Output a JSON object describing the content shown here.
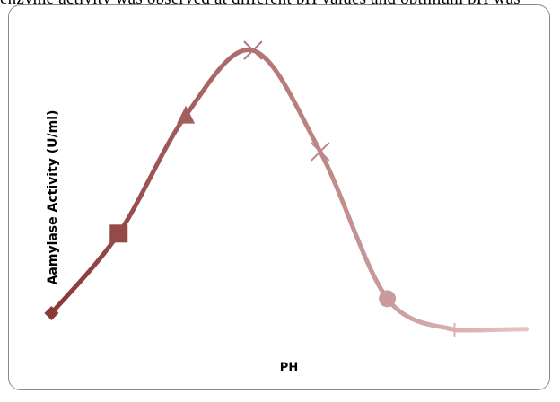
{
  "caption_text": "enzyme activity was observed at different pH values and optimum pH was",
  "chart_data": {
    "type": "line",
    "title": "",
    "xlabel": "PH",
    "ylabel": "Aamylase Activity (U/ml)",
    "x": [
      1,
      2,
      3,
      4,
      5,
      6,
      7
    ],
    "values": [
      0.12,
      0.45,
      0.94,
      1.21,
      0.79,
      0.18,
      0.05
    ],
    "markers": [
      "diamond",
      "square",
      "triangle",
      "x",
      "x",
      "circle",
      "plus"
    ],
    "xlim": [
      0.5,
      8.25
    ],
    "ylim": [
      -0.2,
      1.4
    ],
    "grid": false,
    "legend": "none",
    "colors": {
      "dark": "#8b3a3a",
      "light": "#e4c2c2"
    }
  }
}
